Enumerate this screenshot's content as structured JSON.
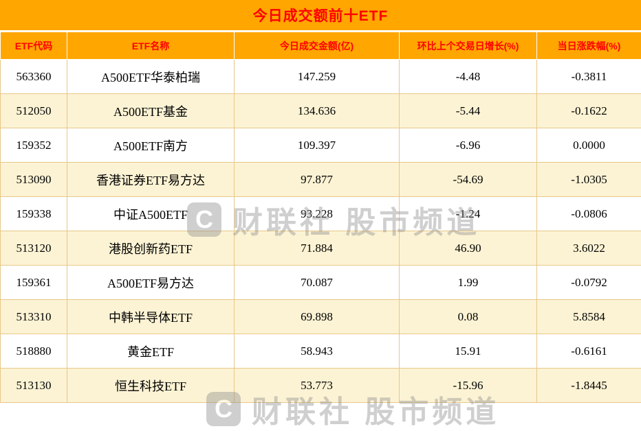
{
  "colors": {
    "header_bg": "#FFA600",
    "header_text": "#FE0000",
    "row_alt_bg": "#FCF3D4",
    "grid_border": "#E8C788"
  },
  "watermark": {
    "logo_letter": "C",
    "text": "财联社 股市频道"
  },
  "table_meta": {
    "col_keys": [
      "etf-code",
      "etf-name",
      "turnover",
      "growth",
      "change"
    ]
  },
  "chart_data": {
    "type": "table",
    "title": "今日成交额前十ETF",
    "columns": [
      "ETF代码",
      "ETF名称",
      "今日成交金额(亿)",
      "环比上个交易日增长(%)",
      "当日涨跌幅(%)"
    ],
    "rows": [
      [
        "563360",
        "A500ETF华泰柏瑞",
        "147.259",
        "-4.48",
        "-0.3811"
      ],
      [
        "512050",
        "A500ETF基金",
        "134.636",
        "-5.44",
        "-0.1622"
      ],
      [
        "159352",
        "A500ETF南方",
        "109.397",
        "-6.96",
        "0.0000"
      ],
      [
        "513090",
        "香港证券ETF易方达",
        "97.877",
        "-54.69",
        "-1.0305"
      ],
      [
        "159338",
        "中证A500ETF",
        "93.228",
        "-1.24",
        "-0.0806"
      ],
      [
        "513120",
        "港股创新药ETF",
        "71.884",
        "46.90",
        "3.6022"
      ],
      [
        "159361",
        "A500ETF易方达",
        "70.087",
        "1.99",
        "-0.0792"
      ],
      [
        "513310",
        "中韩半导体ETF",
        "69.898",
        "0.08",
        "5.8584"
      ],
      [
        "518880",
        "黄金ETF",
        "58.943",
        "15.91",
        "-0.6161"
      ],
      [
        "513130",
        "恒生科技ETF",
        "53.773",
        "-15.96",
        "-1.8445"
      ]
    ]
  }
}
